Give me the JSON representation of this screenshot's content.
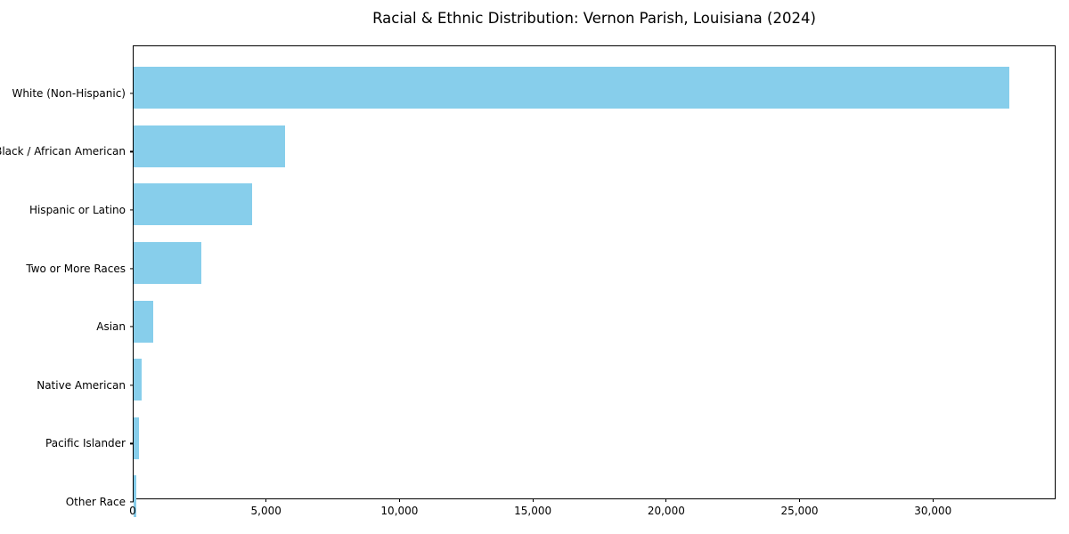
{
  "chart_data": {
    "type": "bar",
    "orientation": "horizontal",
    "title": "Racial & Ethnic Distribution: Vernon Parish, Louisiana (2024)",
    "categories": [
      "White (Non-Hispanic)",
      "Black / African American",
      "Hispanic or Latino",
      "Two or More Races",
      "Asian",
      "Native American",
      "Pacific Islander",
      "Other Race"
    ],
    "values": [
      32900,
      5700,
      4450,
      2550,
      730,
      310,
      190,
      90
    ],
    "bar_color": "#87CEEB",
    "xlabel": "",
    "ylabel": "",
    "xlim": [
      0,
      34600
    ],
    "x_ticks": [
      0,
      5000,
      10000,
      15000,
      20000,
      25000,
      30000
    ],
    "x_tick_labels": [
      "0",
      "5,000",
      "10,000",
      "15,000",
      "20,000",
      "25,000",
      "30,000"
    ],
    "grid": false,
    "legend": "none",
    "frame_color": "#000000",
    "background_color": "#ffffff"
  }
}
